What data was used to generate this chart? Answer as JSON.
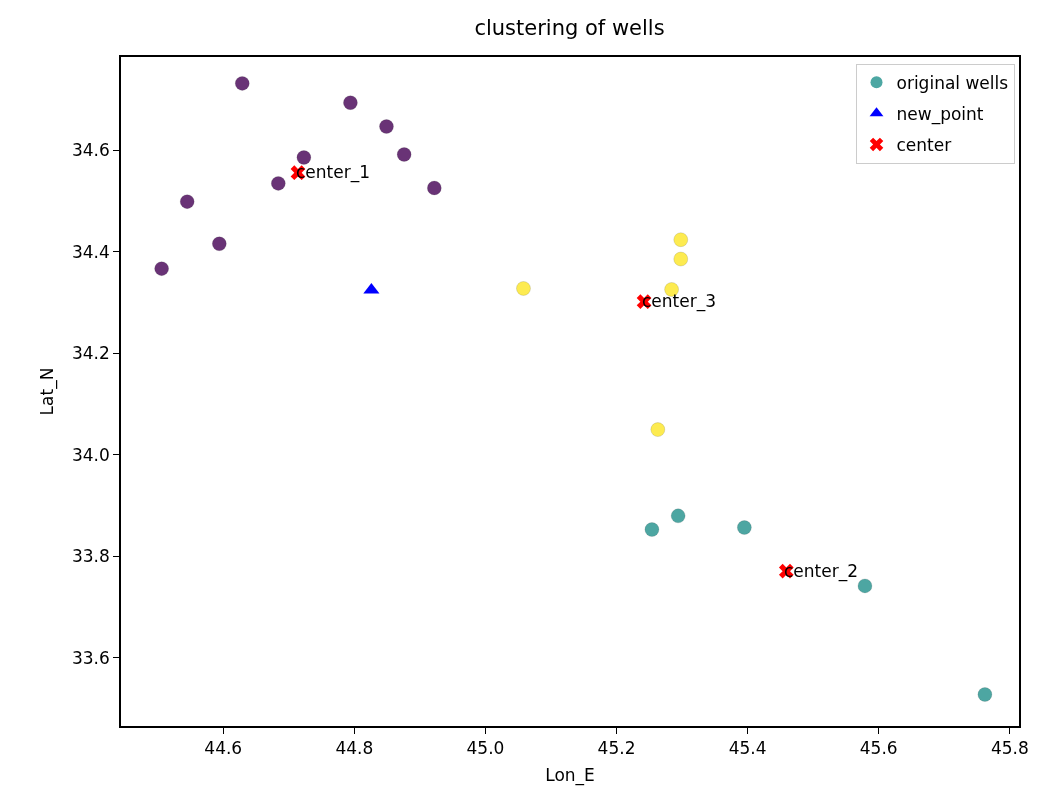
{
  "chart_data": {
    "type": "scatter",
    "title": "clustering of wells",
    "xlabel": "Lon_E",
    "ylabel": "Lat_N",
    "xlim": [
      44.444,
      45.814
    ],
    "xticks": [
      44.6,
      44.8,
      {
        "value": 45,
        "label": "45.0"
      },
      45.2,
      45.4,
      45.6,
      45.8
    ],
    "ylim": [
      33.466,
      34.784
    ],
    "yticks": [
      33.6,
      33.8,
      {
        "value": 34,
        "label": "34.0"
      },
      34.2,
      34.4,
      34.6
    ],
    "grid": false,
    "legend": "top right",
    "series": [
      {
        "name": "original wells",
        "marker": "circle",
        "color": "#21918c",
        "x": [
          45.254,
          45.294,
          45.395,
          45.579,
          45.762,
          44.629,
          44.794,
          44.849,
          44.876,
          44.723,
          44.684,
          44.922,
          44.545,
          44.594,
          44.506,
          45.058,
          45.298,
          45.298,
          45.284,
          45.263
        ],
        "values": [
          33.853,
          33.88,
          33.857,
          33.742,
          33.528,
          34.732,
          34.694,
          34.647,
          34.592,
          34.586,
          34.535,
          34.526,
          34.499,
          34.416,
          34.367,
          34.328,
          34.424,
          34.386,
          34.326,
          34.05
        ],
        "colors": [
          "#21918c",
          "#21918c",
          "#21918c",
          "#21918c",
          "#21918c",
          "#440154",
          "#440154",
          "#440154",
          "#440154",
          "#440154",
          "#440154",
          "#440154",
          "#440154",
          "#440154",
          "#440154",
          "#fde725",
          "#fde725",
          "#fde725",
          "#fde725",
          "#fde725"
        ]
      },
      {
        "name": "new_point",
        "marker": "triangle",
        "color": "#0000ff",
        "x": [
          44.826
        ],
        "values": [
          34.325
        ]
      },
      {
        "name": "center",
        "marker": "cross",
        "color": "#ff0000",
        "x": [
          44.714,
          45.459,
          45.242
        ],
        "values": [
          34.556,
          33.771,
          34.302
        ]
      }
    ],
    "annotations": [
      {
        "text": "center_1",
        "x": 44.714,
        "y": 34.556
      },
      {
        "text": "center_2",
        "x": 45.459,
        "y": 33.771
      },
      {
        "text": "center_3",
        "x": 45.242,
        "y": 34.302
      }
    ]
  }
}
